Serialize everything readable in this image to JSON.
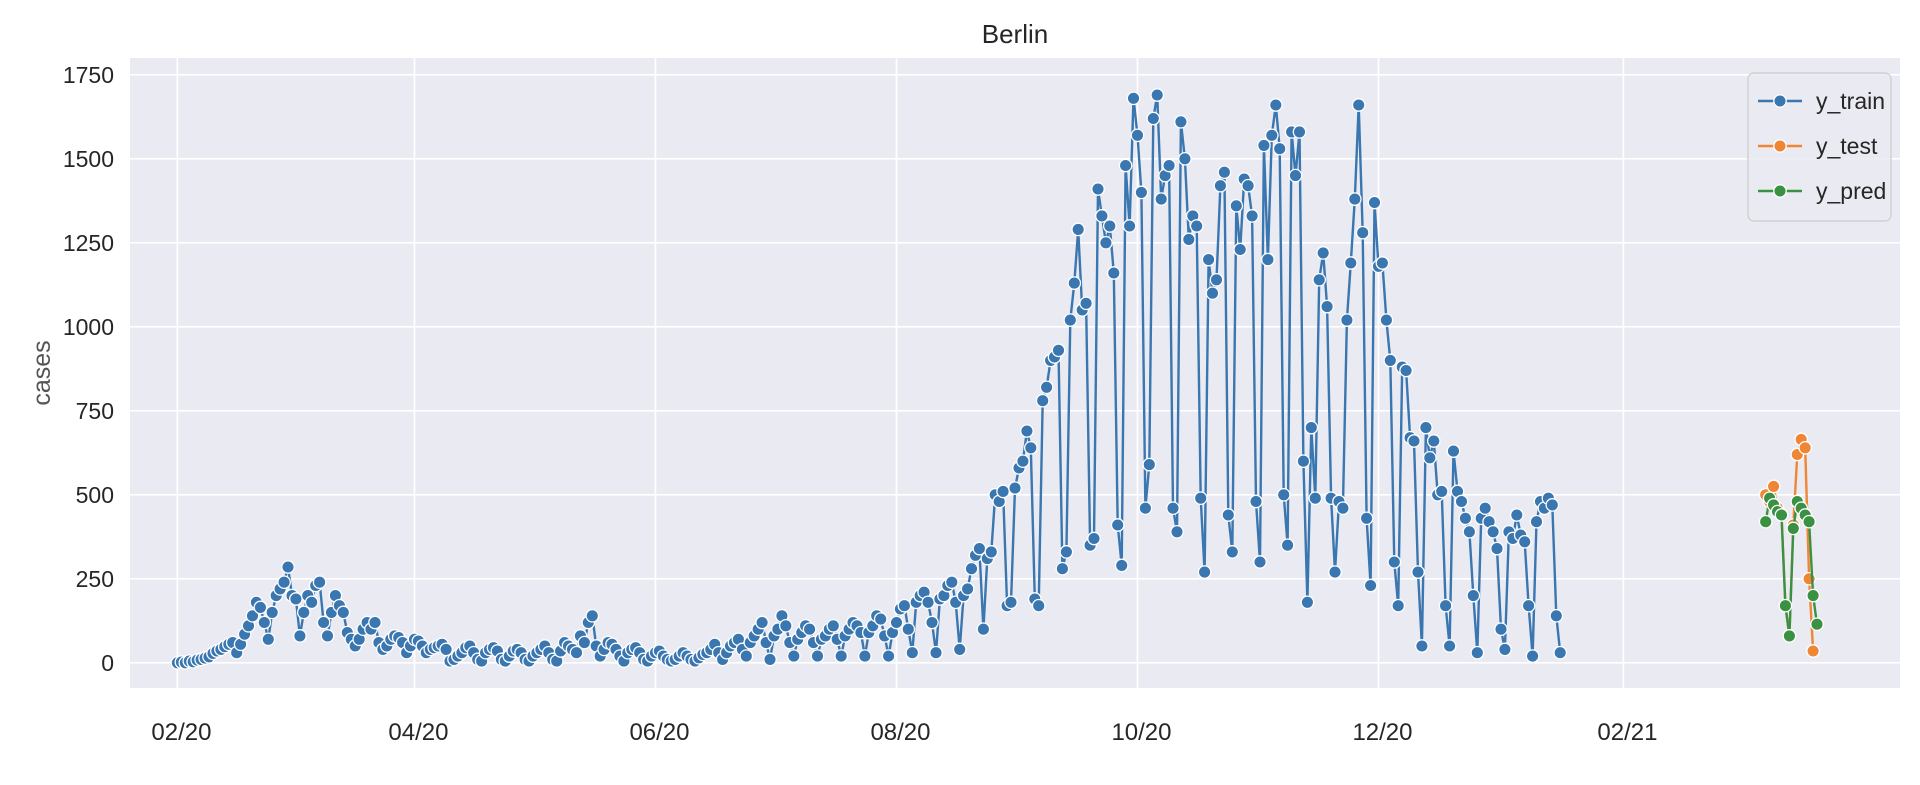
{
  "colors": {
    "plot_bg": "#eaeaf2",
    "grid": "#ffffff",
    "y_train": "#3a76af",
    "y_test": "#ef8636",
    "y_pred": "#3b9142",
    "text": "#262626"
  },
  "chart_data": {
    "type": "line",
    "title": "Berlin",
    "xlabel": "",
    "ylabel": "cases",
    "x_tick_labels": [
      "02/20",
      "04/20",
      "06/20",
      "08/20",
      "10/20",
      "12/20",
      "02/21"
    ],
    "x_tick_dates": [
      "2020-02-01",
      "2020-04-01",
      "2020-06-01",
      "2020-08-01",
      "2020-10-01",
      "2020-12-01",
      "2021-02-01"
    ],
    "xlim": [
      "2020-01-20",
      "2021-04-12"
    ],
    "y_ticks": [
      0,
      250,
      500,
      750,
      1000,
      1250,
      1500,
      1750
    ],
    "ylim": [
      -75,
      1800
    ],
    "grid": true,
    "marker": "circle",
    "legend_position": "top-right",
    "series": [
      {
        "name": "y_train",
        "color": "#3a76af",
        "start_date": "2020-02-01",
        "values": [
          0,
          2,
          0,
          5,
          3,
          8,
          10,
          14,
          18,
          28,
          35,
          40,
          48,
          55,
          60,
          30,
          55,
          85,
          110,
          140,
          180,
          165,
          120,
          70,
          150,
          200,
          220,
          240,
          285,
          200,
          190,
          80,
          150,
          200,
          180,
          230,
          240,
          120,
          80,
          150,
          200,
          170,
          150,
          90,
          70,
          50,
          70,
          100,
          120,
          100,
          120,
          60,
          40,
          50,
          70,
          80,
          75,
          60,
          30,
          50,
          70,
          65,
          50,
          30,
          40,
          45,
          50,
          55,
          40,
          5,
          10,
          20,
          30,
          45,
          50,
          30,
          10,
          5,
          30,
          40,
          45,
          35,
          10,
          5,
          20,
          35,
          40,
          30,
          10,
          5,
          20,
          30,
          40,
          50,
          30,
          10,
          5,
          35,
          60,
          50,
          40,
          30,
          80,
          60,
          120,
          140,
          50,
          20,
          40,
          60,
          55,
          40,
          20,
          5,
          30,
          40,
          45,
          30,
          10,
          5,
          20,
          30,
          35,
          20,
          10,
          5,
          10,
          20,
          30,
          20,
          10,
          5,
          15,
          25,
          30,
          40,
          55,
          30,
          10,
          30,
          50,
          60,
          70,
          40,
          20,
          60,
          80,
          100,
          120,
          60,
          10,
          80,
          100,
          140,
          110,
          60,
          20,
          70,
          90,
          110,
          100,
          60,
          20,
          70,
          80,
          100,
          110,
          70,
          20,
          80,
          100,
          120,
          110,
          90,
          20,
          90,
          110,
          140,
          130,
          80,
          20,
          90,
          120,
          160,
          170,
          100,
          30,
          180,
          200,
          210,
          180,
          120,
          30,
          190,
          200,
          230,
          240,
          180,
          40,
          200,
          220,
          280,
          320,
          340,
          100,
          310,
          330,
          500,
          480,
          510,
          170,
          180,
          520,
          580,
          600,
          690,
          640,
          190,
          170,
          780,
          820,
          900,
          910,
          930,
          280,
          330,
          1020,
          1130,
          1290,
          1050,
          1070,
          350,
          370,
          1410,
          1330,
          1250,
          1300,
          1160,
          410,
          290,
          1480,
          1300,
          1680,
          1570,
          1400,
          460,
          590,
          1620,
          1690,
          1380,
          1450,
          1480,
          460,
          390,
          1610,
          1500,
          1260,
          1330,
          1300,
          490,
          270,
          1200,
          1100,
          1140,
          1420,
          1460,
          440,
          330,
          1360,
          1230,
          1440,
          1420,
          1330,
          480,
          300,
          1540,
          1200,
          1570,
          1660,
          1530,
          500,
          350,
          1580,
          1450,
          1580,
          600,
          180,
          700,
          490,
          1140,
          1220,
          1060,
          490,
          270,
          480,
          460,
          1020,
          1190,
          1380,
          1660,
          1280,
          430,
          230,
          1370,
          1180,
          1190,
          1020,
          900,
          300,
          170,
          880,
          870,
          670,
          660,
          270,
          50,
          700,
          610,
          660,
          500,
          510,
          170,
          50,
          630,
          510,
          480,
          430,
          390,
          200,
          30,
          430,
          460,
          420,
          390,
          340,
          100,
          40,
          390,
          370,
          440,
          380,
          360,
          170,
          20,
          420,
          480,
          460,
          490,
          470,
          140,
          30
        ]
      },
      {
        "name": "y_test",
        "color": "#ef8636",
        "start_date": "2021-03-09",
        "values": [
          500,
          480,
          525,
          460,
          440,
          170,
          80,
          410,
          620,
          665,
          640,
          250,
          35
        ]
      },
      {
        "name": "y_pred",
        "color": "#3b9142",
        "start_date": "2021-03-09",
        "values": [
          420,
          490,
          470,
          450,
          440,
          170,
          80,
          400,
          480,
          460,
          440,
          420,
          200,
          115
        ]
      }
    ]
  }
}
